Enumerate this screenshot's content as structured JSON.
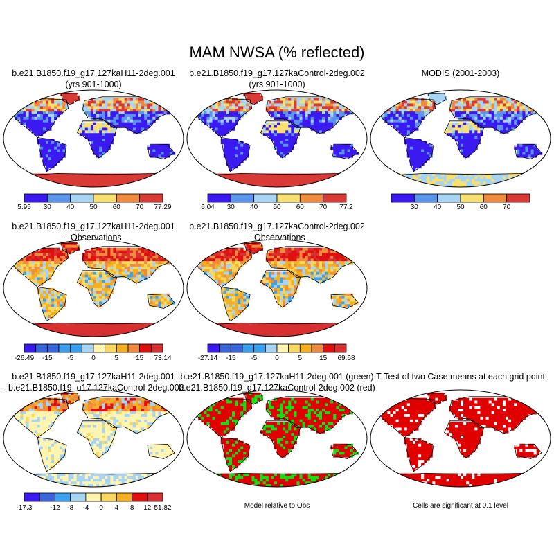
{
  "main_title": "MAM NWSA (% reflected)",
  "colors": {
    "c_purple": "#3a1af0",
    "c_blue": "#5a94ec",
    "c_lightblue": "#a8d4f4",
    "c_yellow": "#f8e070",
    "c_orange": "#f08a3c",
    "c_red": "#d93a36",
    "d_violet": "#3a1af0",
    "d_blue1": "#3a64dc",
    "d_blue2": "#3aa0f0",
    "d_lblue": "#a8d4f4",
    "d_lyellow": "#fff4b0",
    "d_yellow": "#f8d860",
    "d_gold": "#f4b020",
    "d_orange": "#f08a3c",
    "d_red": "#e01010",
    "d_dred": "#d83030",
    "sig_red": "#e00000",
    "sig_green": "#10e010"
  },
  "panels": [
    {
      "id": "p1",
      "title_line1": "b.e21.B1850.f19_g17.127kaH11-2deg.001",
      "title_line2": "(yrs 901-1000)",
      "map_style": "climo",
      "colorbar": {
        "colors": [
          "c_purple",
          "c_blue",
          "c_lightblue",
          "c_yellow",
          "c_orange",
          "c_red"
        ],
        "labels": [
          "5.95",
          "30",
          "40",
          "50",
          "60",
          "70",
          "77.29"
        ],
        "label_mode": "edges"
      }
    },
    {
      "id": "p2",
      "title_line1": "b.e21.B1850.f19_g17.127kaControl-2deg.002",
      "title_line2": "(yrs 901-1000)",
      "map_style": "climo",
      "colorbar": {
        "colors": [
          "c_purple",
          "c_blue",
          "c_lightblue",
          "c_yellow",
          "c_orange",
          "c_red"
        ],
        "labels": [
          "6.04",
          "30",
          "40",
          "50",
          "60",
          "70",
          "77.2"
        ],
        "label_mode": "edges"
      }
    },
    {
      "id": "p3",
      "title_line1": "MODIS (2001-2003)",
      "title_line2": "",
      "map_style": "modis",
      "colorbar": {
        "colors": [
          "c_purple",
          "c_blue",
          "c_lightblue",
          "c_yellow",
          "c_orange",
          "c_red"
        ],
        "labels": [
          "",
          "30",
          "40",
          "50",
          "60",
          "70",
          ""
        ],
        "label_mode": "edges"
      }
    },
    {
      "id": "p4",
      "title_line1": "b.e21.B1850.f19_g17.127kaH11-2deg.001",
      "title_line2": "- Observations",
      "map_style": "diffobs",
      "colorbar": {
        "colors": [
          "d_violet",
          "d_blue1",
          "d_blue1",
          "d_blue2",
          "d_blue2",
          "d_lblue",
          "d_lyellow",
          "d_yellow",
          "d_gold",
          "d_orange",
          "d_red",
          "d_dred"
        ],
        "labels": [
          "-26.49",
          "",
          "-15",
          "",
          "-5",
          "",
          "0",
          "",
          "5",
          "",
          "15",
          "",
          "73.14"
        ],
        "label_mode": "edges"
      }
    },
    {
      "id": "p5",
      "title_line1": "b.e21.B1850.f19_g17.127kaControl-2deg.002",
      "title_line2": "- Observations",
      "map_style": "diffobs",
      "colorbar": {
        "colors": [
          "d_violet",
          "d_blue1",
          "d_blue1",
          "d_blue2",
          "d_blue2",
          "d_lblue",
          "d_lyellow",
          "d_yellow",
          "d_gold",
          "d_orange",
          "d_red",
          "d_dred"
        ],
        "labels": [
          "-27.14",
          "",
          "-15",
          "",
          "-5",
          "",
          "0",
          "",
          "5",
          "",
          "15",
          "",
          "69.68"
        ],
        "label_mode": "edges"
      }
    },
    {
      "id": "p7",
      "title_line1": "b.e21.B1850.f19_g17.127kaH11-2deg.001",
      "title_line2": "- b.e21.B1850.f19_g17.127kaControl-2deg.002",
      "map_style": "diffcase",
      "colorbar": {
        "colors": [
          "d_violet",
          "d_blue1",
          "d_blue2",
          "d_lblue",
          "d_lyellow",
          "d_yellow",
          "d_gold",
          "d_red",
          "d_dred"
        ],
        "labels": [
          "-17.3",
          "",
          "-12",
          "-8",
          "-4",
          "0",
          "4",
          "8",
          "12",
          "51.82"
        ],
        "label_mode": "edges"
      }
    },
    {
      "id": "p8",
      "title_line1": "b.e21.B1850.f19_g17.127kaH11-2deg.001 (green)",
      "title_line2": "b.e21.B1850.f19_g17.127kaControl-2deg.002 (red)",
      "map_style": "greenred",
      "caption": "Model relative to Obs"
    },
    {
      "id": "p9",
      "title_line1": "T-Test of two Case means at each grid point",
      "title_line2": "",
      "map_style": "ttest",
      "caption": "Cells are significant at 0.1 level"
    }
  ],
  "chart_data": {
    "type": "heatmap",
    "title": "MAM NWSA (% reflected)",
    "panels": [
      {
        "title": "b.e21.B1850.f19_g17.127kaH11-2deg.001 (yrs 901-1000)",
        "levels": [
          5.95,
          30,
          40,
          50,
          60,
          70,
          77.29
        ]
      },
      {
        "title": "b.e21.B1850.f19_g17.127kaControl-2deg.002 (yrs 901-1000)",
        "levels": [
          6.04,
          30,
          40,
          50,
          60,
          70,
          77.2
        ]
      },
      {
        "title": "MODIS (2001-2003)",
        "levels": [
          30,
          40,
          50,
          60,
          70
        ]
      },
      {
        "title": "b.e21.B1850.f19_g17.127kaH11-2deg.001 - Observations",
        "levels": [
          -26.49,
          -15,
          -5,
          0,
          5,
          15,
          73.14
        ]
      },
      {
        "title": "b.e21.B1850.f19_g17.127kaControl-2deg.002 - Observations",
        "levels": [
          -27.14,
          -15,
          -5,
          0,
          5,
          15,
          69.68
        ]
      },
      {
        "title": "b.e21.B1850.f19_g17.127kaH11-2deg.001 - b.e21.B1850.f19_g17.127kaControl-2deg.002",
        "levels": [
          -17.3,
          -12,
          -8,
          -4,
          0,
          4,
          8,
          12,
          51.82
        ]
      },
      {
        "title": "b.e21.B1850.f19_g17.127kaH11-2deg.001 (green) b.e21.B1850.f19_g17.127kaControl-2deg.002 (red)",
        "caption": "Model relative to Obs"
      },
      {
        "title": "T-Test of two Case means at each grid point",
        "caption": "Cells are significant at 0.1 level"
      }
    ]
  }
}
